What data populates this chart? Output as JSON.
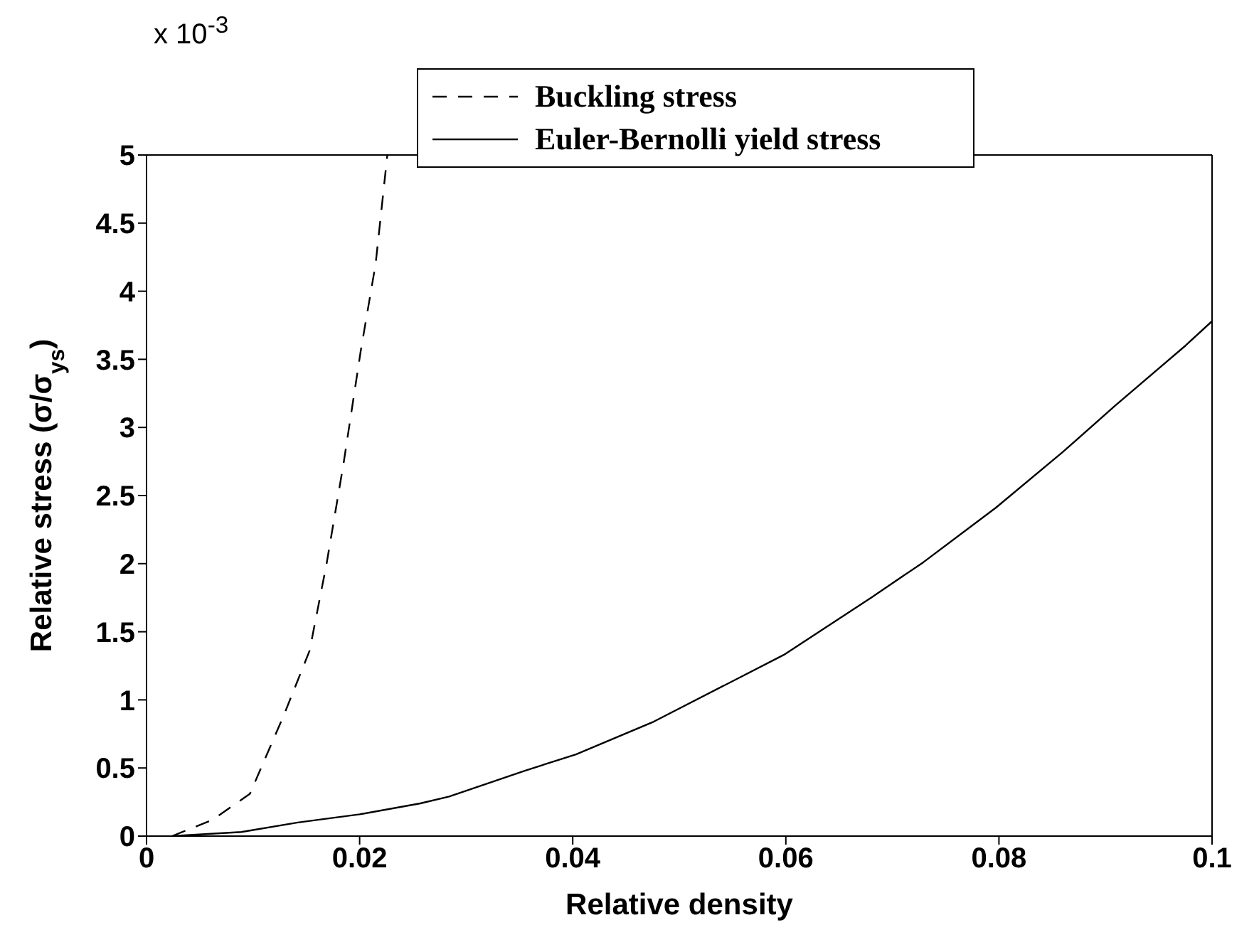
{
  "chart_data": {
    "type": "line",
    "xlabel": "Relative density",
    "ylabel": "Relative stress (σ/σ$_{ys}$)",
    "annotations": [
      "x 10$^{-3}$"
    ],
    "xlim": [
      0,
      0.1
    ],
    "xticks": [
      0,
      0.02,
      0.04,
      0.06,
      0.08,
      0.1
    ],
    "ylim": [
      0,
      5
    ],
    "yticks": [
      0,
      0.5,
      1,
      1.5,
      2,
      2.5,
      3,
      3.5,
      4,
      4.5,
      5
    ],
    "grid": false,
    "legend": "top",
    "marker": "none",
    "series": [
      {
        "name": "Buckling stress",
        "color": "#000000",
        "line_style": "dashed",
        "x": [
          0.0024,
          0.0062,
          0.0097,
          0.0129,
          0.0153,
          0.0169,
          0.0185,
          0.0201,
          0.0215,
          0.0226
        ],
        "values": [
          0,
          0.12,
          0.31,
          0.89,
          1.36,
          2.0,
          2.74,
          3.56,
          4.2,
          5.0
        ]
      },
      {
        "name": "Euler-Bernolli yield stress",
        "color": "#000000",
        "line_style": "solid",
        "x": [
          0.0024,
          0.0089,
          0.0142,
          0.02,
          0.0257,
          0.0284,
          0.0355,
          0.0403,
          0.0476,
          0.0598,
          0.068,
          0.0729,
          0.0797,
          0.086,
          0.0909,
          0.0975,
          0.1
        ],
        "values": [
          0,
          0.03,
          0.1,
          0.16,
          0.24,
          0.29,
          0.48,
          0.6,
          0.84,
          1.33,
          1.75,
          2.01,
          2.41,
          2.82,
          3.16,
          3.6,
          3.78
        ]
      }
    ]
  }
}
